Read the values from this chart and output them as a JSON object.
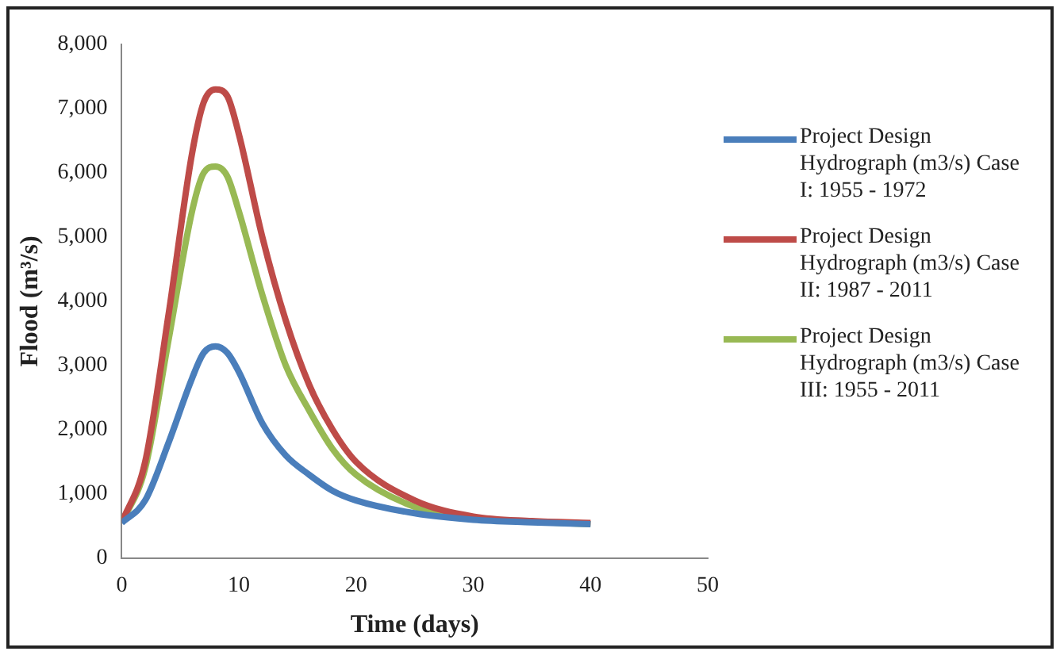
{
  "chart_data": {
    "type": "line",
    "xlabel": "Time (days)",
    "ylabel": "Flood (m³/s)",
    "xlim": [
      0,
      50
    ],
    "xticks": [
      0,
      10,
      20,
      30,
      40,
      50
    ],
    "ylim": [
      0,
      8000
    ],
    "yticks": [
      0,
      {
        "value": 1000,
        "label": "1,000"
      },
      {
        "value": 2000,
        "label": "2,000"
      },
      {
        "value": 3000,
        "label": "3,000"
      },
      {
        "value": 4000,
        "label": "4,000"
      },
      {
        "value": 5000,
        "label": "5,000"
      },
      {
        "value": 6000,
        "label": "6,000"
      },
      {
        "value": 7000,
        "label": "7,000"
      },
      {
        "value": 8000,
        "label": "8,000"
      }
    ],
    "x": [
      0,
      2,
      4,
      6,
      7,
      8,
      9,
      10,
      12,
      14,
      16,
      18,
      20,
      25,
      30,
      35,
      40
    ],
    "series": [
      {
        "name": "Project Design Hydrograph (m3/s) Case I: 1955 - 1972",
        "color": "#4a7ebb",
        "values": [
          550,
          900,
          1800,
          2800,
          3200,
          3300,
          3200,
          2900,
          2100,
          1600,
          1300,
          1050,
          900,
          700,
          600,
          560,
          530
        ]
      },
      {
        "name": "Project Design Hydrograph (m3/s) Case II: 1987  - 2011",
        "color": "#be4b48",
        "values": [
          550,
          1500,
          3800,
          6300,
          7100,
          7300,
          7200,
          6600,
          5000,
          3700,
          2700,
          2000,
          1500,
          900,
          650,
          580,
          550
        ]
      },
      {
        "name": "Project Design Hydrograph (m3/s) Case III: 1955 - 2011",
        "color": "#98b954",
        "values": [
          550,
          1400,
          3400,
          5400,
          6000,
          6100,
          5950,
          5400,
          4100,
          3000,
          2300,
          1700,
          1300,
          800,
          620,
          570,
          530
        ]
      }
    ],
    "grid": false,
    "legend": "right",
    "marker": "none",
    "line_style": "solid"
  }
}
